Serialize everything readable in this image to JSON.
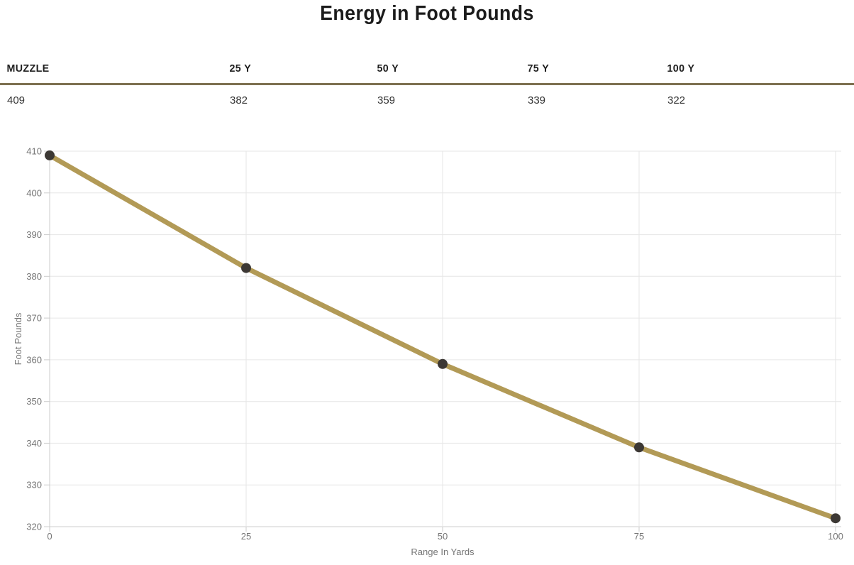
{
  "page": {
    "title": "Energy in Foot Pounds"
  },
  "table": {
    "headers": [
      "MUZZLE",
      "25 Y",
      "50 Y",
      "75 Y",
      "100 Y"
    ],
    "values": [
      "409",
      "382",
      "359",
      "339",
      "322"
    ]
  },
  "chart_data": {
    "type": "line",
    "title": "Energy in Foot Pounds",
    "x": [
      0,
      25,
      50,
      75,
      100
    ],
    "series": [
      {
        "name": "Energy",
        "values": [
          409,
          382,
          359,
          339,
          322
        ]
      }
    ],
    "xlabel": "Range In Yards",
    "ylabel": "Foot Pounds",
    "xlim": [
      0,
      100
    ],
    "ylim": [
      320,
      410
    ],
    "x_ticks": [
      0,
      25,
      50,
      75,
      100
    ],
    "y_ticks": [
      320,
      330,
      340,
      350,
      360,
      370,
      380,
      390,
      400,
      410
    ],
    "grid": true,
    "legend": "none",
    "line_color": "#b29a56",
    "point_color": "#3c3834",
    "grid_color": "#e6e6e6",
    "axis_color": "#cccccc",
    "label_color": "#757575"
  },
  "colors": {
    "title_text": "#1b1b1b",
    "table_rule": "#7d7050",
    "table_header_text": "#1f1f1f",
    "table_value_text": "#333333",
    "background": "#ffffff"
  }
}
